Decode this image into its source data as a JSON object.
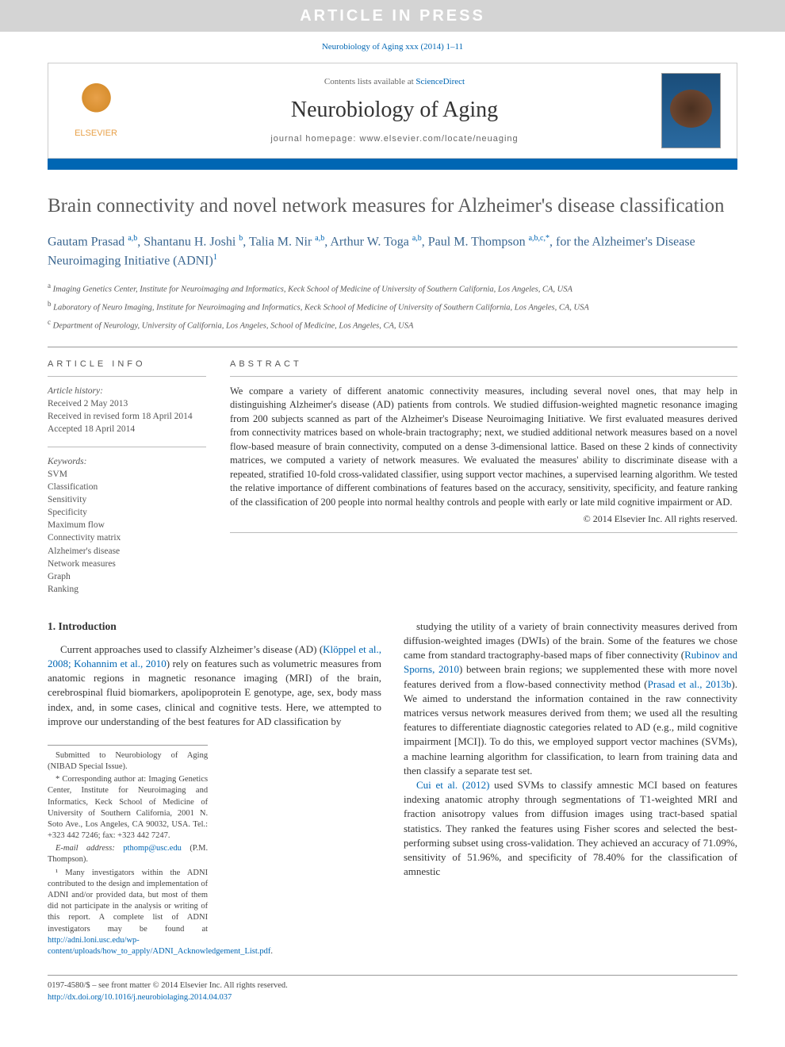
{
  "banner": "ARTICLE IN PRESS",
  "top_citation": "Neurobiology of Aging xxx (2014) 1–11",
  "header": {
    "elsevier": "ELSEVIER",
    "contents_prefix": "Contents lists available at ",
    "contents_link": "ScienceDirect",
    "journal": "Neurobiology of Aging",
    "homepage_label": "journal homepage: ",
    "homepage_url": "www.elsevier.com/locate/neuaging"
  },
  "title": "Brain connectivity and novel network measures for Alzheimer's disease classification",
  "authors_html": "Gautam Prasad <sup>a,b</sup>, Shantanu H. Joshi <sup>b</sup>, Talia M. Nir <sup>a,b</sup>, Arthur W. Toga <sup>a,b</sup>, Paul M. Thompson <sup>a,b,c,*</sup>, for the  Alzheimer's Disease Neuroimaging Initiative (ADNI)<sup>1</sup>",
  "affiliations": [
    {
      "sup": "a",
      "text": "Imaging Genetics Center, Institute for Neuroimaging and Informatics, Keck School of Medicine of University of Southern California, Los Angeles, CA, USA"
    },
    {
      "sup": "b",
      "text": "Laboratory of Neuro Imaging, Institute for Neuroimaging and Informatics, Keck School of Medicine of University of Southern California, Los Angeles, CA, USA"
    },
    {
      "sup": "c",
      "text": "Department of Neurology, University of California, Los Angeles, School of Medicine, Los Angeles, CA, USA"
    }
  ],
  "article_info": {
    "head": "ARTICLE INFO",
    "history_label": "Article history:",
    "received": "Received 2 May 2013",
    "revised": "Received in revised form 18 April 2014",
    "accepted": "Accepted 18 April 2014",
    "keywords_label": "Keywords:",
    "keywords": [
      "SVM",
      "Classification",
      "Sensitivity",
      "Specificity",
      "Maximum flow",
      "Connectivity matrix",
      "Alzheimer's disease",
      "Network measures",
      "Graph",
      "Ranking"
    ]
  },
  "abstract": {
    "head": "ABSTRACT",
    "text": "We compare a variety of different anatomic connectivity measures, including several novel ones, that may help in distinguishing Alzheimer's disease (AD) patients from controls. We studied diffusion-weighted magnetic resonance imaging from 200 subjects scanned as part of the Alzheimer's Disease Neuroimaging Initiative. We first evaluated measures derived from connectivity matrices based on whole-brain tractography; next, we studied additional network measures based on a novel flow-based measure of brain connectivity, computed on a dense 3-dimensional lattice. Based on these 2 kinds of connectivity matrices, we computed a variety of network measures. We evaluated the measures' ability to discriminate disease with a repeated, stratified 10-fold cross-validated classifier, using support vector machines, a supervised learning algorithm. We tested the relative importance of different combinations of features based on the accuracy, sensitivity, specificity, and feature ranking of the classification of 200 people into normal healthy controls and people with early or late mild cognitive impairment or AD.",
    "copyright": "© 2014 Elsevier Inc. All rights reserved."
  },
  "intro": {
    "heading": "1. Introduction",
    "col1": "Current approaches used to classify Alzheimer's disease (AD) (Klöppel et al., 2008; Kohannim et al., 2010) rely on features such as volumetric measures from anatomic regions in magnetic resonance imaging (MRI) of the brain, cerebrospinal fluid biomarkers, apolipoprotein E genotype, age, sex, body mass index, and, in some cases, clinical and cognitive tests. Here, we attempted to improve our understanding of the best features for AD classification by",
    "col1_ref1": "Klöppel et al., 2008; Kohannim et al., 2010",
    "col2_p1": "studying the utility of a variety of brain connectivity measures derived from diffusion-weighted images (DWIs) of the brain. Some of the features we chose came from standard tractography-based maps of fiber connectivity (Rubinov and Sporns, 2010) between brain regions; we supplemented these with more novel features derived from a flow-based connectivity method (Prasad et al., 2013b). We aimed to understand the information contained in the raw connectivity matrices versus network measures derived from them; we used all the resulting features to differentiate diagnostic categories related to AD (e.g., mild cognitive impairment [MCI]). To do this, we employed support vector machines (SVMs), a machine learning algorithm for classification, to learn from training data and then classify a separate test set.",
    "col2_ref1": "Rubinov and Sporns, 2010",
    "col2_ref2": "Prasad et al., 2013b",
    "col2_p2": "Cui et al. (2012) used SVMs to classify amnestic MCI based on features indexing anatomic atrophy through segmentations of T1-weighted MRI and fraction anisotropy values from diffusion images using tract-based spatial statistics. They ranked the features using Fisher scores and selected the best-performing subset using cross-validation. They achieved an accuracy of 71.09%, sensitivity of 51.96%, and specificity of 78.40% for the classification of amnestic",
    "col2_ref3": "Cui et al. (2012)"
  },
  "footnotes": {
    "submitted": "Submitted to Neurobiology of Aging (NIBAD Special Issue).",
    "corr_label": "* Corresponding author at: Imaging Genetics Center, Institute for Neuroimaging and Informatics, Keck School of Medicine of University of Southern California, 2001 N. Soto Ave., Los Angeles, CA 90032, USA. Tel.: +323 442 7246; fax: +323 442 7247.",
    "email_label": "E-mail address: ",
    "email": "pthomp@usc.edu",
    "email_suffix": " (P.M. Thompson).",
    "adni_note": "¹ Many investigators within the ADNI contributed to the design and implementation of ADNI and/or provided data, but most of them did not participate in the analysis or writing of this report. A complete list of ADNI investigators may be found at ",
    "adni_url": "http://adni.loni.usc.edu/wp-content/uploads/how_to_apply/ADNI_Acknowledgement_List.pdf"
  },
  "bottom": {
    "issn": "0197-4580/$ – see front matter © 2014 Elsevier Inc. All rights reserved.",
    "doi": "http://dx.doi.org/10.1016/j.neurobiolaging.2014.04.037"
  }
}
